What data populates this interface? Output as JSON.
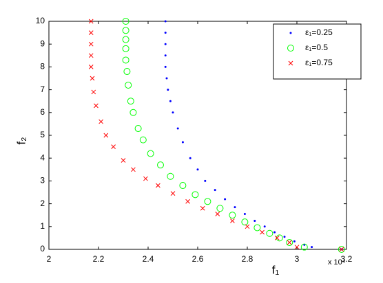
{
  "chart_data": {
    "type": "scatter",
    "x_label": "f₁",
    "y_label": "f₂",
    "x_multiplier": "x 10⁴",
    "xlim": [
      2,
      3.2
    ],
    "xticks": [
      2,
      2.2,
      2.4,
      2.6,
      2.8,
      3,
      3.2
    ],
    "ylim": [
      0,
      10
    ],
    "yticks": [
      0,
      1,
      2,
      3,
      4,
      5,
      6,
      7,
      8,
      9,
      10
    ],
    "grid": false,
    "legend_position": "upper-right",
    "series": [
      {
        "name": "ε₁=0.25",
        "color": "#0000ff",
        "marker": "dot",
        "x": [
          2.47,
          2.47,
          2.47,
          2.47,
          2.47,
          2.475,
          2.48,
          2.49,
          2.5,
          2.52,
          2.54,
          2.57,
          2.6,
          2.63,
          2.67,
          2.71,
          2.75,
          2.79,
          2.83,
          2.87,
          2.91,
          2.95,
          2.99,
          3.03,
          3.06,
          3.18
        ],
        "y": [
          10,
          9.5,
          9,
          8.5,
          8,
          7.5,
          7,
          6.5,
          6,
          5.3,
          4.7,
          4.0,
          3.5,
          3.0,
          2.6,
          2.2,
          1.85,
          1.55,
          1.25,
          1.0,
          0.75,
          0.55,
          0.35,
          0.2,
          0.1,
          0
        ]
      },
      {
        "name": "ε₁=0.5",
        "color": "#00ff00",
        "marker": "circle",
        "x": [
          2.31,
          2.31,
          2.31,
          2.31,
          2.31,
          2.315,
          2.32,
          2.33,
          2.34,
          2.36,
          2.38,
          2.41,
          2.45,
          2.49,
          2.54,
          2.59,
          2.64,
          2.69,
          2.74,
          2.79,
          2.84,
          2.89,
          2.93,
          2.97,
          3.03,
          3.18
        ],
        "y": [
          10,
          9.6,
          9.2,
          8.8,
          8.3,
          7.8,
          7.2,
          6.5,
          6.0,
          5.3,
          4.8,
          4.2,
          3.7,
          3.2,
          2.8,
          2.4,
          2.1,
          1.8,
          1.5,
          1.2,
          0.95,
          0.7,
          0.5,
          0.3,
          0.1,
          0
        ]
      },
      {
        "name": "ε₁=0.75",
        "color": "#ff0000",
        "marker": "x",
        "x": [
          2.17,
          2.17,
          2.17,
          2.17,
          2.17,
          2.175,
          2.18,
          2.19,
          2.21,
          2.23,
          2.26,
          2.3,
          2.34,
          2.39,
          2.44,
          2.5,
          2.56,
          2.62,
          2.68,
          2.74,
          2.8,
          2.86,
          2.92,
          2.97,
          3.0,
          3.18
        ],
        "y": [
          10,
          9.5,
          9.0,
          8.5,
          8.0,
          7.5,
          6.9,
          6.3,
          5.6,
          5.0,
          4.5,
          3.9,
          3.5,
          3.1,
          2.8,
          2.45,
          2.1,
          1.8,
          1.55,
          1.25,
          1.0,
          0.75,
          0.5,
          0.3,
          0.1,
          0
        ]
      }
    ]
  }
}
